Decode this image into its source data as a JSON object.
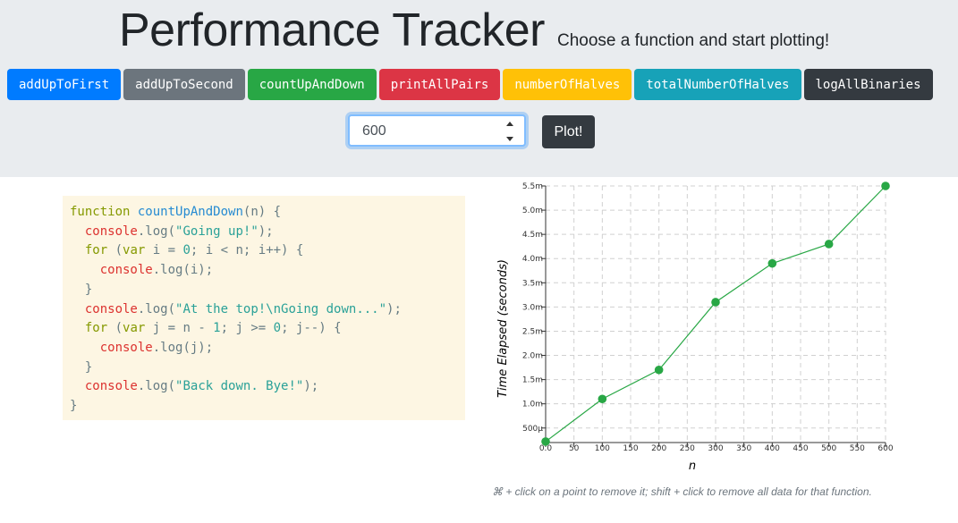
{
  "header": {
    "title": "Performance Tracker",
    "subtitle": "Choose a function and start plotting!"
  },
  "function_buttons": [
    {
      "label": "addUpToFirst",
      "color": "#007bff"
    },
    {
      "label": "addUpToSecond",
      "color": "#6c757d"
    },
    {
      "label": "countUpAndDown",
      "color": "#28a745"
    },
    {
      "label": "printAllPairs",
      "color": "#dc3545"
    },
    {
      "label": "numberOfHalves",
      "color": "#ffc107"
    },
    {
      "label": "totalNumberOfHalves",
      "color": "#17a2b8"
    },
    {
      "label": "logAllBinaries",
      "color": "#343a40"
    }
  ],
  "input": {
    "value": "600"
  },
  "plot_button": {
    "label": "Plot!"
  },
  "code": {
    "lines": [
      "function countUpAndDown(n) {",
      "  console.log(\"Going up!\");",
      "  for (var i = 0; i < n; i++) {",
      "    console.log(i);",
      "  }",
      "  console.log(\"At the top!\\nGoing down...\");",
      "  for (var j = n - 1; j >= 0; j--) {",
      "    console.log(j);",
      "  }",
      "  console.log(\"Back down. Bye!\");",
      "}"
    ]
  },
  "chart_data": {
    "type": "line",
    "xlabel": "n",
    "ylabel": "Time Elapsed (seconds)",
    "x_ticks": [
      "0.0",
      "50",
      "100",
      "150",
      "200",
      "250",
      "300",
      "350",
      "400",
      "450",
      "500",
      "550",
      "600"
    ],
    "y_ticks": [
      "500μ",
      "1.0m",
      "1.5m",
      "2.0m",
      "2.5m",
      "3.0m",
      "3.5m",
      "4.0m",
      "4.5m",
      "5.0m",
      "5.5m"
    ],
    "xlim": [
      0,
      600
    ],
    "ylim": [
      0.0002,
      0.0055
    ],
    "grid": true,
    "series": [
      {
        "color": "#28a745",
        "points": [
          {
            "x": 0,
            "y": 0.00022
          },
          {
            "x": 100,
            "y": 0.0011
          },
          {
            "x": 200,
            "y": 0.0017
          },
          {
            "x": 300,
            "y": 0.0031
          },
          {
            "x": 400,
            "y": 0.0039
          },
          {
            "x": 500,
            "y": 0.0043
          },
          {
            "x": 600,
            "y": 0.0055
          }
        ]
      }
    ]
  },
  "footnote": "⌘ + click on a point to remove it; shift + click to remove all data for that function."
}
